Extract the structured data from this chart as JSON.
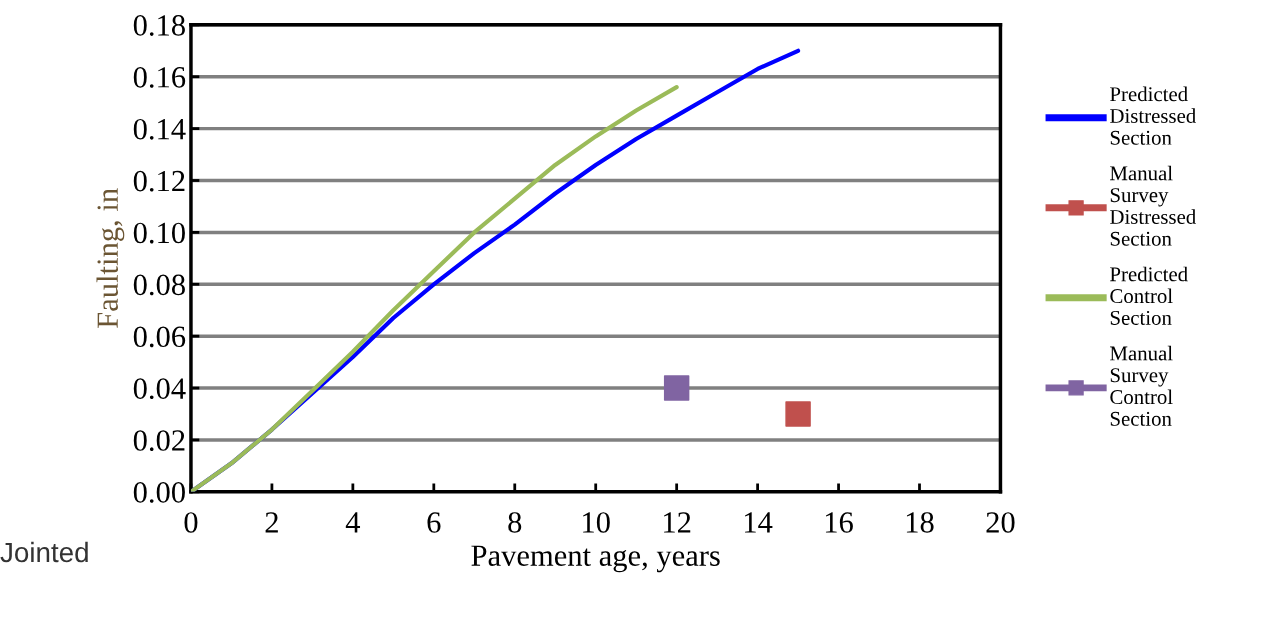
{
  "chart_data": {
    "type": "line",
    "xlabel": "Pavement age, years",
    "ylabel": "Faulting, in",
    "annotations": [
      "Jointed"
    ],
    "xlim": [
      0,
      20
    ],
    "xticks": [
      0,
      2,
      4,
      6,
      8,
      10,
      12,
      14,
      16,
      18,
      20
    ],
    "ylim": [
      0,
      0.18
    ],
    "yticks": [
      {
        "value": 0,
        "label": "0.00"
      },
      {
        "value": 0.02,
        "label": "0.02"
      },
      {
        "value": 0.04,
        "label": "0.04"
      },
      {
        "value": 0.06,
        "label": "0.06"
      },
      {
        "value": 0.08,
        "label": "0.08"
      },
      {
        "value": 0.1,
        "label": "0.10"
      },
      {
        "value": 0.12,
        "label": "0.12"
      },
      {
        "value": 0.14,
        "label": "0.14"
      },
      {
        "value": 0.16,
        "label": "0.16"
      },
      {
        "value": 0.18,
        "label": "0.18"
      }
    ],
    "grid": "y",
    "legend": "right",
    "series": [
      {
        "name": "Predicted Distressed Section",
        "color": "#0000ff",
        "x": [
          0,
          1,
          2,
          3,
          4,
          5,
          6,
          7,
          8,
          9,
          10,
          11,
          12,
          13,
          14,
          15
        ],
        "values": [
          0,
          0.011,
          0.024,
          0.038,
          0.052,
          0.067,
          0.08,
          0.092,
          0.103,
          0.115,
          0.126,
          0.136,
          0.145,
          0.154,
          0.163,
          0.17
        ]
      },
      {
        "name": "Manual Survey Distressed Section",
        "type": "scatter",
        "marker": "square",
        "color": "#c0504d",
        "x": [
          15
        ],
        "values": [
          0.03
        ]
      },
      {
        "name": "Predicted Control Section",
        "color": "#9bbb59",
        "x": [
          0,
          1,
          2,
          3,
          4,
          5,
          6,
          7,
          8,
          9,
          10,
          11,
          12
        ],
        "values": [
          0,
          0.011,
          0.024,
          0.039,
          0.054,
          0.07,
          0.085,
          0.1,
          0.113,
          0.126,
          0.137,
          0.147,
          0.156
        ]
      },
      {
        "name": "Manual Survey Control Section",
        "type": "scatter",
        "marker": "square",
        "color": "#8064a2",
        "x": [
          12
        ],
        "values": [
          0.04
        ]
      }
    ]
  }
}
